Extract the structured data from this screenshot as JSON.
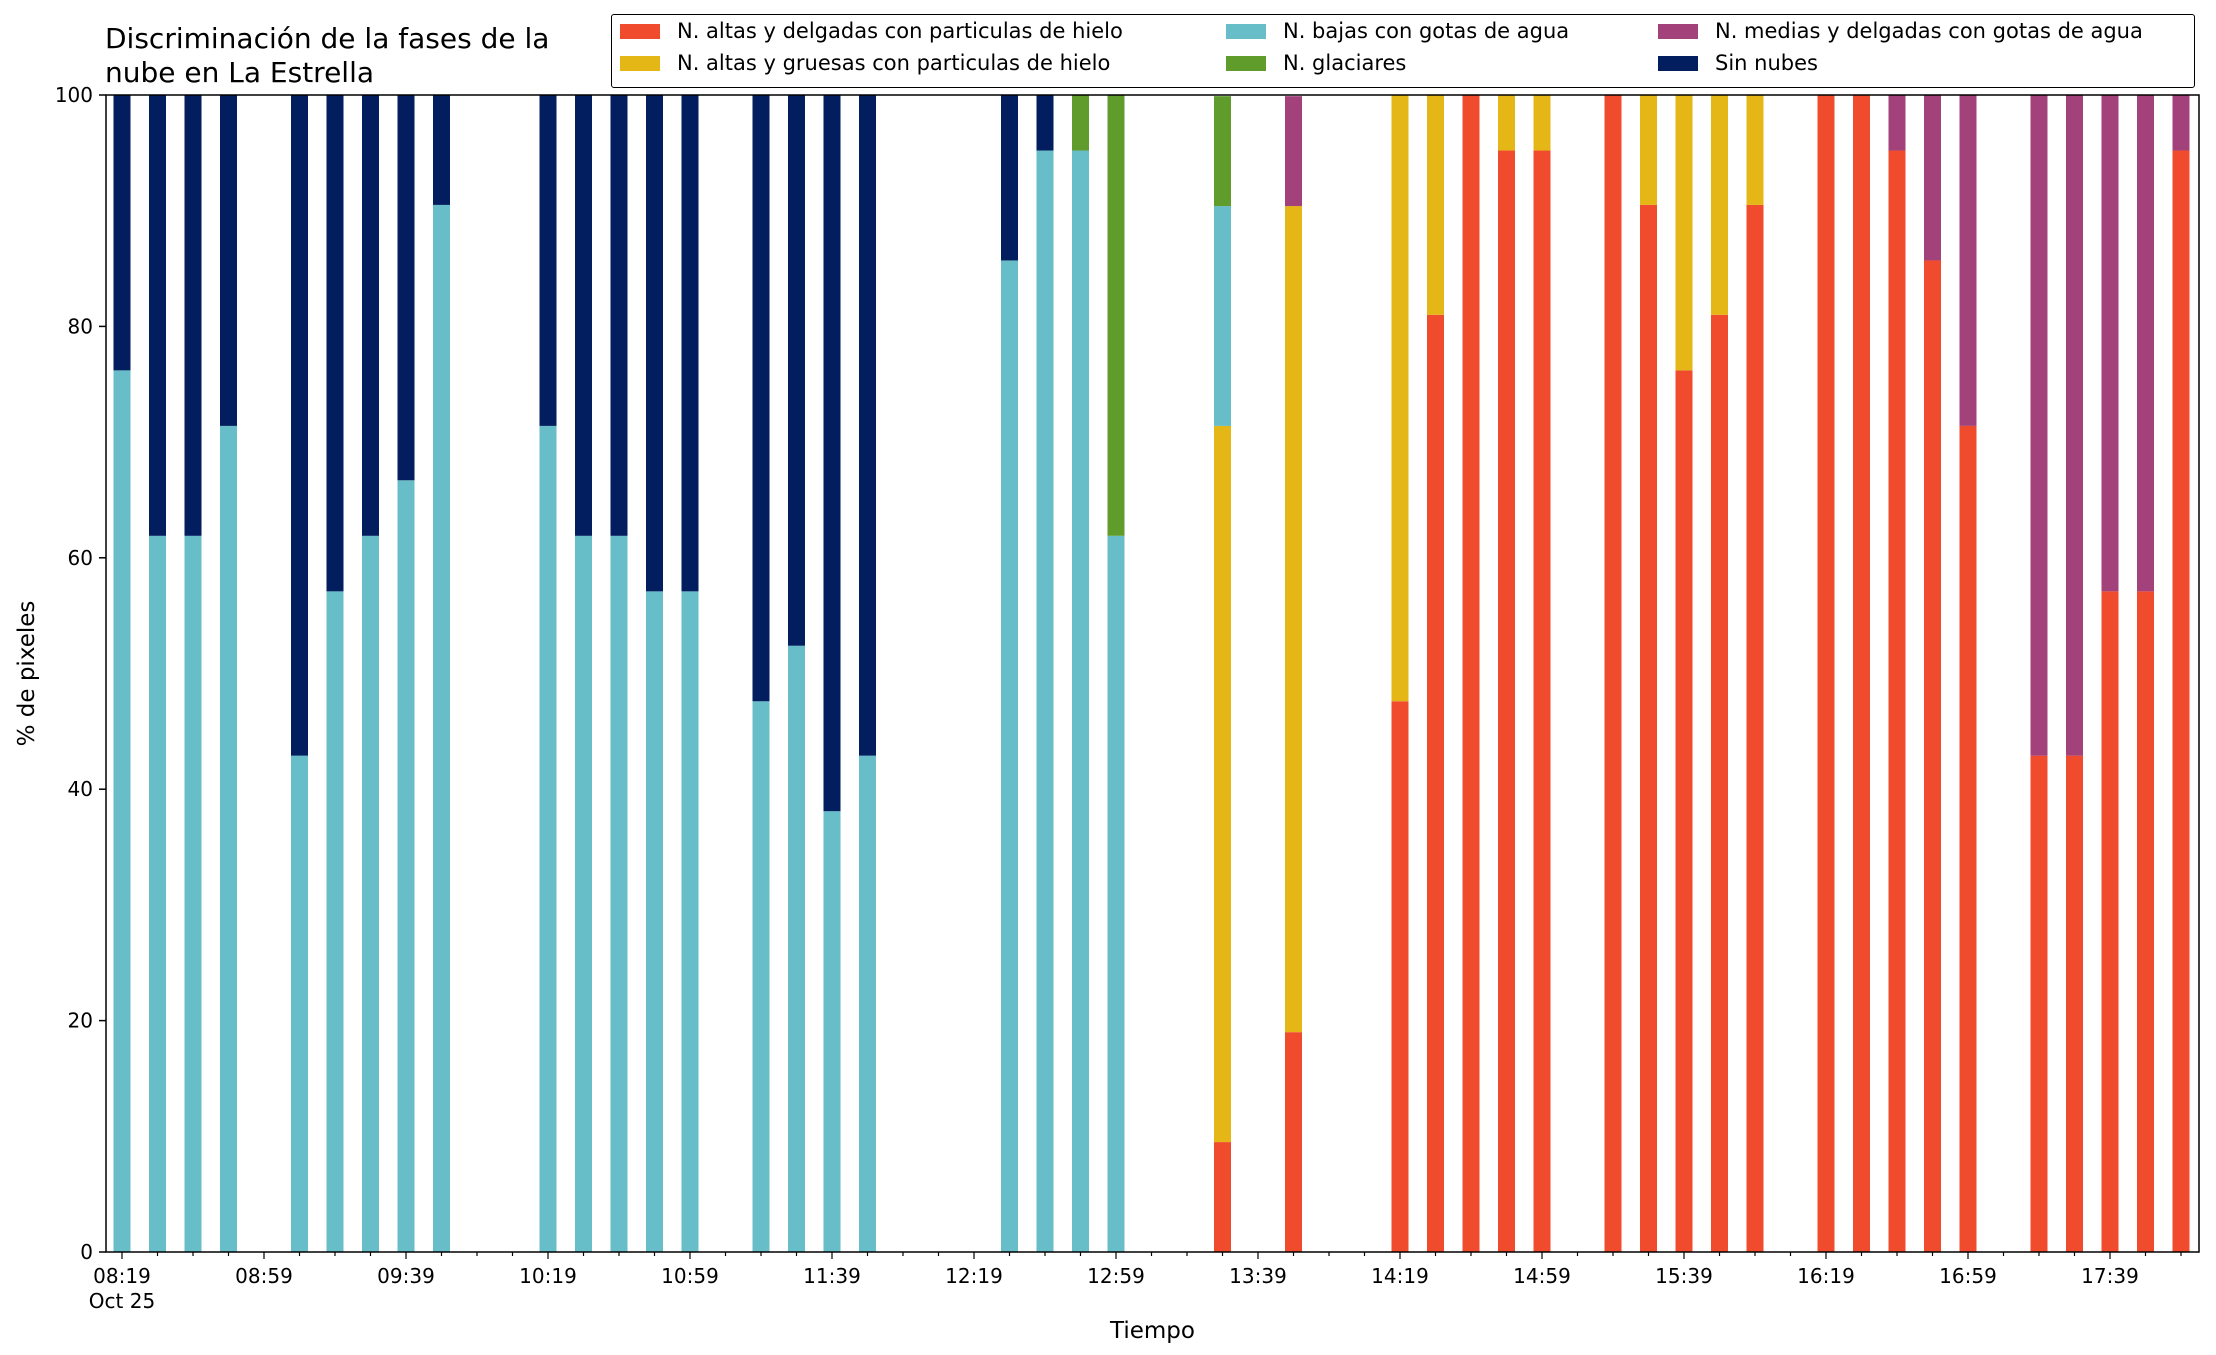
{
  "chart_data": {
    "type": "bar",
    "stacked": true,
    "title": "Discriminación de la fases de la\nnube en La Estrella",
    "xlabel": "Tiempo",
    "ylabel": "% de pixeles",
    "ylim": [
      0,
      100
    ],
    "yticks": [
      0,
      20,
      40,
      60,
      80,
      100
    ],
    "x_start": "08:19",
    "x_end": "17:59",
    "x_tick_labels": [
      "08:19",
      "08:59",
      "09:39",
      "10:19",
      "10:59",
      "11:39",
      "12:19",
      "12:59",
      "13:39",
      "14:19",
      "14:59",
      "15:39",
      "16:19",
      "16:59",
      "17:39"
    ],
    "x_tick_sublabel": "Oct 25",
    "legend_position": "top-right",
    "series": [
      {
        "name": "N. altas y delgadas con particulas de hielo",
        "color": "#ef4b2c"
      },
      {
        "name": "N. altas y gruesas con particulas de hielo",
        "color": "#e4b716"
      },
      {
        "name": "N. bajas con gotas de agua",
        "color": "#67bdc8"
      },
      {
        "name": "N. glaciares",
        "color": "#5f9c2c"
      },
      {
        "name": "N. medias y delgadas con gotas de agua",
        "color": "#a3427a"
      },
      {
        "name": "Sin nubes",
        "color": "#021e5e"
      }
    ],
    "stack_order": [
      "N. altas y delgadas con particulas de hielo",
      "N. altas y gruesas con particulas de hielo",
      "N. bajas con gotas de agua",
      "N. glaciares",
      "N. medias y delgadas con gotas de agua",
      "Sin nubes"
    ],
    "bars": [
      {
        "time": "08:19",
        "values": [
          0,
          0,
          76.2,
          0,
          0,
          23.8
        ]
      },
      {
        "time": "08:29",
        "values": [
          0,
          0,
          61.9,
          0,
          0,
          38.1
        ]
      },
      {
        "time": "08:39",
        "values": [
          0,
          0,
          61.9,
          0,
          0,
          38.1
        ]
      },
      {
        "time": "08:49",
        "values": [
          0,
          0,
          71.4,
          0,
          0,
          28.6
        ]
      },
      {
        "time": "09:09",
        "values": [
          0,
          0,
          42.9,
          0,
          0,
          57.1
        ]
      },
      {
        "time": "09:19",
        "values": [
          0,
          0,
          57.1,
          0,
          0,
          42.9
        ]
      },
      {
        "time": "09:29",
        "values": [
          0,
          0,
          61.9,
          0,
          0,
          38.1
        ]
      },
      {
        "time": "09:39",
        "values": [
          0,
          0,
          66.7,
          0,
          0,
          33.3
        ]
      },
      {
        "time": "09:49",
        "values": [
          0,
          0,
          90.5,
          0,
          0,
          9.5
        ]
      },
      {
        "time": "10:19",
        "values": [
          0,
          0,
          71.4,
          0,
          0,
          28.6
        ]
      },
      {
        "time": "10:29",
        "values": [
          0,
          0,
          61.9,
          0,
          0,
          38.1
        ]
      },
      {
        "time": "10:39",
        "values": [
          0,
          0,
          61.9,
          0,
          0,
          38.1
        ]
      },
      {
        "time": "10:49",
        "values": [
          0,
          0,
          57.1,
          0,
          0,
          42.9
        ]
      },
      {
        "time": "10:59",
        "values": [
          0,
          0,
          57.1,
          0,
          0,
          42.9
        ]
      },
      {
        "time": "11:19",
        "values": [
          0,
          0,
          47.6,
          0,
          0,
          52.4
        ]
      },
      {
        "time": "11:29",
        "values": [
          0,
          0,
          52.4,
          0,
          0,
          47.6
        ]
      },
      {
        "time": "11:39",
        "values": [
          0,
          0,
          38.1,
          0,
          0,
          61.9
        ]
      },
      {
        "time": "11:49",
        "values": [
          0,
          0,
          42.9,
          0,
          0,
          57.1
        ]
      },
      {
        "time": "12:29",
        "values": [
          0,
          0,
          85.7,
          0,
          0,
          14.3
        ]
      },
      {
        "time": "12:39",
        "values": [
          0,
          0,
          95.2,
          0,
          0,
          4.8
        ]
      },
      {
        "time": "12:49",
        "values": [
          0,
          0,
          95.2,
          4.8,
          0,
          0
        ]
      },
      {
        "time": "12:59",
        "values": [
          0,
          0,
          61.9,
          38.1,
          0,
          0
        ]
      },
      {
        "time": "13:29",
        "values": [
          9.5,
          61.9,
          19.0,
          9.5,
          0,
          0
        ]
      },
      {
        "time": "13:49",
        "values": [
          19.0,
          71.4,
          0,
          0,
          9.5,
          0
        ]
      },
      {
        "time": "14:19",
        "values": [
          47.6,
          52.4,
          0,
          0,
          0,
          0
        ]
      },
      {
        "time": "14:29",
        "values": [
          81.0,
          19.0,
          0,
          0,
          0,
          0
        ]
      },
      {
        "time": "14:39",
        "values": [
          100,
          0,
          0,
          0,
          0,
          0
        ]
      },
      {
        "time": "14:49",
        "values": [
          95.2,
          4.8,
          0,
          0,
          0,
          0
        ]
      },
      {
        "time": "14:59",
        "values": [
          95.2,
          4.8,
          0,
          0,
          0,
          0
        ]
      },
      {
        "time": "15:19",
        "values": [
          100,
          0,
          0,
          0,
          0,
          0
        ]
      },
      {
        "time": "15:29",
        "values": [
          90.5,
          9.5,
          0,
          0,
          0,
          0
        ]
      },
      {
        "time": "15:39",
        "values": [
          76.2,
          23.8,
          0,
          0,
          0,
          0
        ]
      },
      {
        "time": "15:49",
        "values": [
          81.0,
          19.0,
          0,
          0,
          0,
          0
        ]
      },
      {
        "time": "15:59",
        "values": [
          90.5,
          9.5,
          0,
          0,
          0,
          0
        ]
      },
      {
        "time": "16:19",
        "values": [
          100,
          0,
          0,
          0,
          0,
          0
        ]
      },
      {
        "time": "16:29",
        "values": [
          100,
          0,
          0,
          0,
          0,
          0
        ]
      },
      {
        "time": "16:39",
        "values": [
          95.2,
          0,
          0,
          0,
          4.8,
          0
        ]
      },
      {
        "time": "16:49",
        "values": [
          85.7,
          0,
          0,
          0,
          14.3,
          0
        ]
      },
      {
        "time": "16:59",
        "values": [
          71.4,
          0,
          0,
          0,
          28.6,
          0
        ]
      },
      {
        "time": "17:19",
        "values": [
          42.9,
          0,
          0,
          0,
          57.1,
          0
        ]
      },
      {
        "time": "17:29",
        "values": [
          42.9,
          0,
          0,
          0,
          57.1,
          0
        ]
      },
      {
        "time": "17:39",
        "values": [
          57.1,
          0,
          0,
          0,
          42.9,
          0
        ]
      },
      {
        "time": "17:49",
        "values": [
          57.1,
          0,
          0,
          0,
          42.9,
          0
        ]
      },
      {
        "time": "17:59",
        "values": [
          95.2,
          0,
          0,
          0,
          4.8,
          0
        ]
      }
    ]
  }
}
